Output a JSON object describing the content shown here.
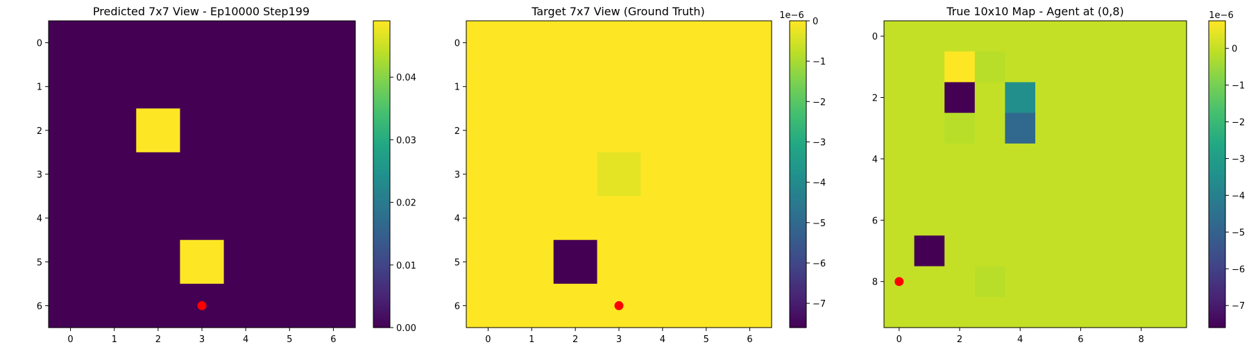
{
  "chart_data": [
    {
      "type": "heatmap",
      "title": "Predicted 7x7 View - Ep10000 Step199",
      "grid_size": 7,
      "x_ticks": [
        0,
        1,
        2,
        3,
        4,
        5,
        6
      ],
      "y_ticks": [
        0,
        1,
        2,
        3,
        4,
        5,
        6
      ],
      "values": [
        [
          0,
          0,
          0,
          0,
          0,
          0,
          0
        ],
        [
          0,
          0,
          0,
          0,
          0,
          0,
          0
        ],
        [
          0,
          0,
          0.049,
          0,
          0,
          0,
          0
        ],
        [
          0,
          0,
          0,
          0,
          0,
          0,
          0
        ],
        [
          0,
          0,
          0,
          0,
          0,
          0,
          0
        ],
        [
          0,
          0,
          0,
          0.049,
          0,
          0,
          0
        ],
        [
          0,
          0,
          0,
          0,
          0,
          0,
          0
        ]
      ],
      "vmin": 0,
      "vmax": 0.049,
      "colorbar": {
        "ticks": [
          0,
          0.01,
          0.02,
          0.03,
          0.04
        ],
        "labels": [
          "0.00",
          "0.01",
          "0.02",
          "0.03",
          "0.04"
        ],
        "offset": ""
      },
      "agent": {
        "x": 3,
        "y": 6,
        "color": "#ff0000"
      },
      "colormap": "viridis",
      "grid": false
    },
    {
      "type": "heatmap",
      "title": "Target 7x7 View (Ground Truth)",
      "grid_size": 7,
      "x_ticks": [
        0,
        1,
        2,
        3,
        4,
        5,
        6
      ],
      "y_ticks": [
        0,
        1,
        2,
        3,
        4,
        5,
        6
      ],
      "values": [
        [
          0,
          0,
          0,
          0,
          0,
          0,
          0
        ],
        [
          0,
          0,
          0,
          0,
          0,
          0,
          0
        ],
        [
          0,
          0,
          0,
          0,
          0,
          0,
          0
        ],
        [
          0,
          0,
          0,
          -0.3,
          0,
          0,
          0
        ],
        [
          0,
          0,
          0,
          0,
          0,
          0,
          0
        ],
        [
          0,
          0,
          -7.6,
          0,
          0,
          0,
          0
        ],
        [
          0,
          0,
          0,
          0,
          0,
          0,
          0
        ]
      ],
      "vmin": -7.6,
      "vmax": 0,
      "colorbar": {
        "ticks": [
          0,
          -1,
          -2,
          -3,
          -4,
          -5,
          -6,
          -7
        ],
        "labels": [
          "0",
          "−1",
          "−2",
          "−3",
          "−4",
          "−5",
          "−6",
          "−7"
        ],
        "offset": "1e−6"
      },
      "agent": {
        "x": 3,
        "y": 6,
        "color": "#ff0000"
      },
      "colormap": "viridis",
      "grid": false
    },
    {
      "type": "heatmap",
      "title": "True 10x10 Map - Agent at (0,8)",
      "grid_size": 10,
      "x_ticks": [
        0,
        2,
        4,
        6,
        8
      ],
      "y_ticks": [
        0,
        2,
        4,
        6,
        8
      ],
      "values": [
        [
          0,
          0,
          0,
          0,
          0,
          0,
          0,
          0,
          0,
          0
        ],
        [
          0,
          0,
          0.75,
          -0.15,
          0,
          0,
          0,
          0,
          0,
          0
        ],
        [
          0,
          0,
          -7.6,
          0,
          -3.5,
          0,
          0,
          0,
          0,
          0
        ],
        [
          0,
          0,
          -0.15,
          0,
          -4.8,
          0,
          0,
          0,
          0,
          0
        ],
        [
          0,
          0,
          0,
          0,
          0,
          0,
          0,
          0,
          0,
          0
        ],
        [
          0,
          0,
          0,
          0,
          0,
          0,
          0,
          0,
          0,
          0
        ],
        [
          0,
          0,
          0,
          0,
          0,
          0,
          0,
          0,
          0,
          0
        ],
        [
          0,
          -7.6,
          0,
          0,
          0,
          0,
          0,
          0,
          0,
          0
        ],
        [
          0,
          0,
          0,
          -0.15,
          0,
          0,
          0,
          0,
          0,
          0
        ],
        [
          0,
          0,
          0,
          0,
          0,
          0,
          0,
          0,
          0,
          0
        ]
      ],
      "vmin": -7.6,
      "vmax": 0.75,
      "colorbar": {
        "ticks": [
          0,
          -1,
          -2,
          -3,
          -4,
          -5,
          -6,
          -7
        ],
        "labels": [
          "0",
          "−1",
          "−2",
          "−3",
          "−4",
          "−5",
          "−6",
          "−7"
        ],
        "offset": "1e−6"
      },
      "agent": {
        "x": 0,
        "y": 8,
        "color": "#ff0000"
      },
      "colormap": "viridis",
      "grid": false
    }
  ]
}
